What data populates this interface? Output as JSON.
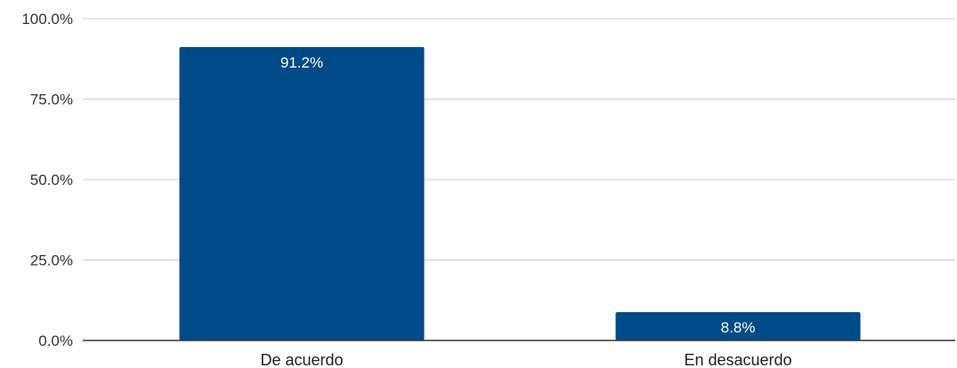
{
  "chart_data": {
    "type": "bar",
    "categories": [
      "De acuerdo",
      "En desacuerdo"
    ],
    "values": [
      91.2,
      8.8
    ],
    "data_labels": [
      "91.2%",
      "8.8%"
    ],
    "title": "",
    "xlabel": "",
    "ylabel": "",
    "ylim": [
      0,
      100
    ],
    "yticks": [
      0,
      25,
      50,
      75,
      100
    ],
    "ytick_labels": [
      "0.0%",
      "25.0%",
      "50.0%",
      "75.0%",
      "100.0%"
    ],
    "grid": true,
    "legend": "none",
    "bar_color": "#004a87"
  }
}
